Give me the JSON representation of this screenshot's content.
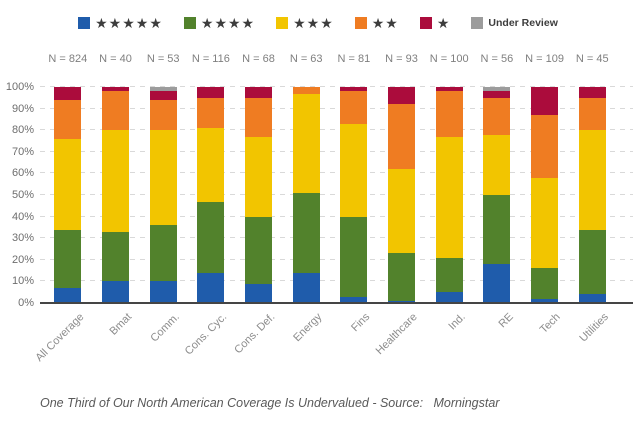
{
  "legend": {
    "items": [
      {
        "name": "five-star",
        "label": "★★★★★",
        "color": "#1F5CAB"
      },
      {
        "name": "four-star",
        "label": "★★★★",
        "color": "#52822C"
      },
      {
        "name": "three-star",
        "label": "★★★",
        "color": "#F2C500"
      },
      {
        "name": "two-star",
        "label": "★★",
        "color": "#EF7C22"
      },
      {
        "name": "one-star",
        "label": "★",
        "color": "#AB0C3C"
      },
      {
        "name": "under-review",
        "label": "Under Review",
        "color": "#9C9C9C"
      }
    ]
  },
  "chart_data": {
    "type": "bar",
    "subtype": "stacked-100-percent",
    "title": "",
    "xlabel": "",
    "ylabel": "",
    "ylim": [
      0,
      100
    ],
    "grid": "dashed-horizontal-10pct",
    "legend_position": "top-center",
    "categories": [
      "All Coverage",
      "Bmat",
      "Comm.",
      "Cons. Cyc.",
      "Cons. Def.",
      "Energy",
      "Fins",
      "Healthcare",
      "Ind.",
      "RE",
      "Tech",
      "Utilities"
    ],
    "n_labels": [
      "N = 824",
      "N = 40",
      "N = 53",
      "N = 116",
      "N = 68",
      "N = 63",
      "N = 81",
      "N = 93",
      "N = 100",
      "N = 56",
      "N = 109",
      "N = 45"
    ],
    "y_ticks": [
      "0%",
      "10%",
      "20%",
      "30%",
      "40%",
      "50%",
      "60%",
      "70%",
      "80%",
      "90%",
      "100%"
    ],
    "series": [
      {
        "name": "5-star",
        "label": "★★★★★",
        "color": "#1F5CAB",
        "values": [
          7,
          10,
          10,
          14,
          9,
          14,
          3,
          1,
          5,
          18,
          2,
          4
        ]
      },
      {
        "name": "4-star",
        "label": "★★★★",
        "color": "#52822C",
        "values": [
          27,
          23,
          26,
          33,
          31,
          37,
          37,
          22,
          16,
          32,
          14,
          30
        ]
      },
      {
        "name": "3-star",
        "label": "★★★",
        "color": "#F2C500",
        "values": [
          42,
          47,
          44,
          34,
          37,
          46,
          43,
          39,
          56,
          28,
          42,
          46
        ]
      },
      {
        "name": "2-star",
        "label": "★★",
        "color": "#EF7C22",
        "values": [
          18,
          18,
          14,
          14,
          18,
          3,
          15,
          30,
          21,
          17,
          29,
          15
        ]
      },
      {
        "name": "1-star",
        "label": "★",
        "color": "#AB0C3C",
        "values": [
          6,
          2,
          4,
          5,
          5,
          0,
          2,
          8,
          2,
          3,
          13,
          5
        ]
      },
      {
        "name": "under-review",
        "label": "Under Review",
        "color": "#9C9C9C",
        "values": [
          0,
          0,
          2,
          0,
          0,
          0,
          0,
          0,
          0,
          2,
          0,
          0
        ]
      }
    ]
  },
  "caption": "One Third of Our North American Coverage Is Undervalued - Source:   Morningstar"
}
